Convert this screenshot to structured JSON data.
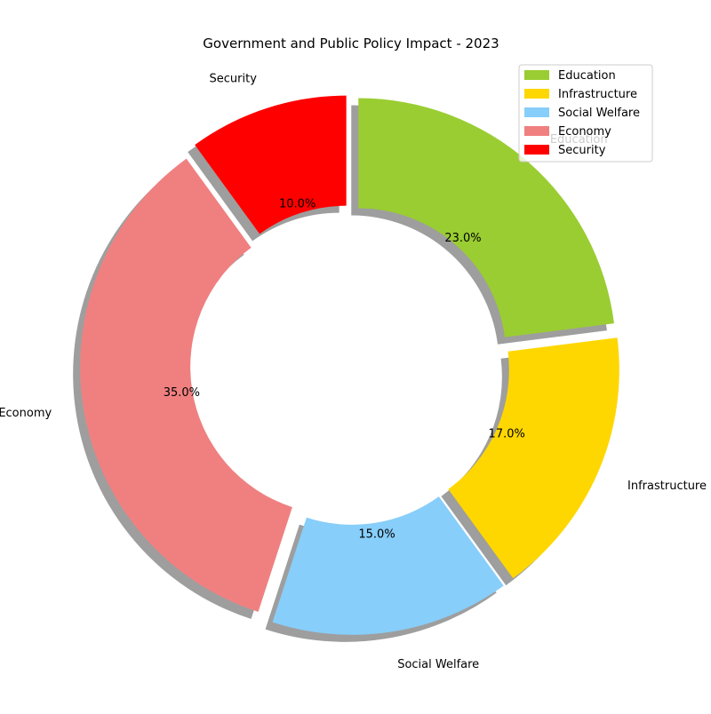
{
  "chart_data": {
    "type": "pie",
    "title": "Government and Public Policy Impact - 2023",
    "donut": true,
    "shadow": true,
    "legend_position": "top-right",
    "slices": [
      {
        "label": "Education",
        "value": 23.0,
        "pct_label": "23.0%",
        "color": "#9ACD32"
      },
      {
        "label": "Infrastructure",
        "value": 17.0,
        "pct_label": "17.0%",
        "color": "#FFD700"
      },
      {
        "label": "Social Welfare",
        "value": 15.0,
        "pct_label": "15.0%",
        "color": "#87CEFA"
      },
      {
        "label": "Economy",
        "value": 35.0,
        "pct_label": "35.0%",
        "color": "#F08080"
      },
      {
        "label": "Security",
        "value": 10.0,
        "pct_label": "10.0%",
        "color": "#FF0000"
      }
    ]
  }
}
